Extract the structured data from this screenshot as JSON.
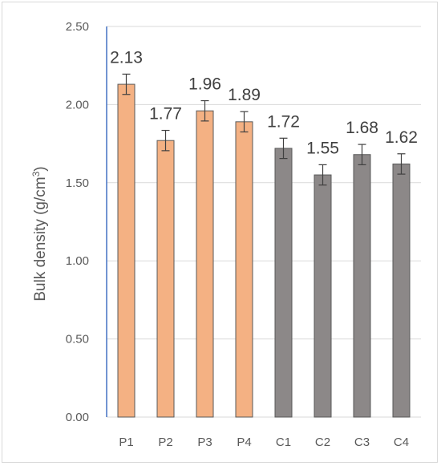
{
  "chart_data": {
    "type": "bar",
    "title": "",
    "xlabel": "",
    "ylabel": "Bulk density (g/cm",
    "ylabel_superscript": "3",
    "ylabel_suffix": ")",
    "categories": [
      "P1",
      "P2",
      "P3",
      "P4",
      "C1",
      "C2",
      "C3",
      "C4"
    ],
    "values": [
      2.13,
      1.77,
      1.96,
      1.89,
      1.72,
      1.55,
      1.68,
      1.62
    ],
    "data_labels": [
      "2.13",
      "1.77",
      "1.96",
      "1.89",
      "1.72",
      "1.55",
      "1.68",
      "1.62"
    ],
    "error": [
      0.065,
      0.065,
      0.065,
      0.065,
      0.065,
      0.065,
      0.065,
      0.065
    ],
    "bar_colors": [
      "#f4b183",
      "#f4b183",
      "#f4b183",
      "#f4b183",
      "#8c8888",
      "#8c8888",
      "#8c8888",
      "#8c8888"
    ],
    "ylim": [
      0,
      2.5
    ],
    "yticks": [
      0,
      0.5,
      1.0,
      1.5,
      2.0,
      2.5
    ],
    "ytick_labels": [
      "0.00",
      "0.50",
      "1.00",
      "1.50",
      "2.00",
      "2.50"
    ],
    "grid": true,
    "legend": "none",
    "axis_color": "#4472c4"
  }
}
